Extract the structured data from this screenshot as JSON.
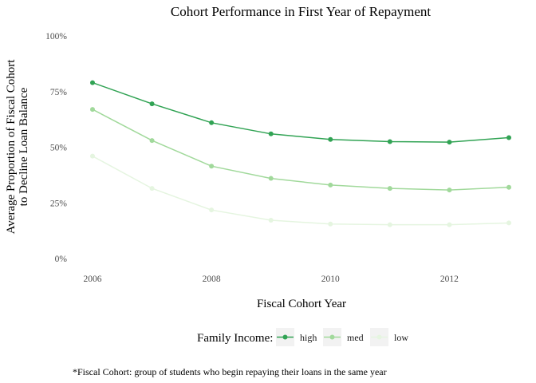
{
  "chart_data": {
    "type": "line",
    "title": "Cohort Performance in First Year of Repayment",
    "xlabel": "Fiscal Cohort Year",
    "ylabel_lines": [
      "Average Proportion of Fiscal Cohort",
      "to Decline Loan Balance"
    ],
    "x": [
      2006,
      2007,
      2008,
      2009,
      2010,
      2011,
      2012,
      2013
    ],
    "x_ticks": [
      2006,
      2008,
      2010,
      2012
    ],
    "y_ticks": [
      {
        "value": 0,
        "label": "0%"
      },
      {
        "value": 0.25,
        "label": "25%"
      },
      {
        "value": 0.5,
        "label": "50%"
      },
      {
        "value": 0.75,
        "label": "75%"
      },
      {
        "value": 1.0,
        "label": "100%"
      }
    ],
    "xlim": [
      2006,
      2013
    ],
    "ylim": [
      0,
      1
    ],
    "grid": false,
    "legend_title": "Family Income:",
    "legend_position": "bottom",
    "series": [
      {
        "name": "high",
        "color": "#31a354",
        "values": [
          0.79,
          0.695,
          0.61,
          0.56,
          0.535,
          0.525,
          0.523,
          0.543
        ]
      },
      {
        "name": "med",
        "color": "#a1d99b",
        "values": [
          0.67,
          0.53,
          0.415,
          0.36,
          0.33,
          0.315,
          0.308,
          0.32
        ]
      },
      {
        "name": "low",
        "color": "#e5f5e0",
        "values": [
          0.46,
          0.315,
          0.218,
          0.172,
          0.155,
          0.152,
          0.152,
          0.16
        ]
      }
    ],
    "caption": "*Fiscal Cohort: group of students who begin repaying their loans in the same year"
  }
}
